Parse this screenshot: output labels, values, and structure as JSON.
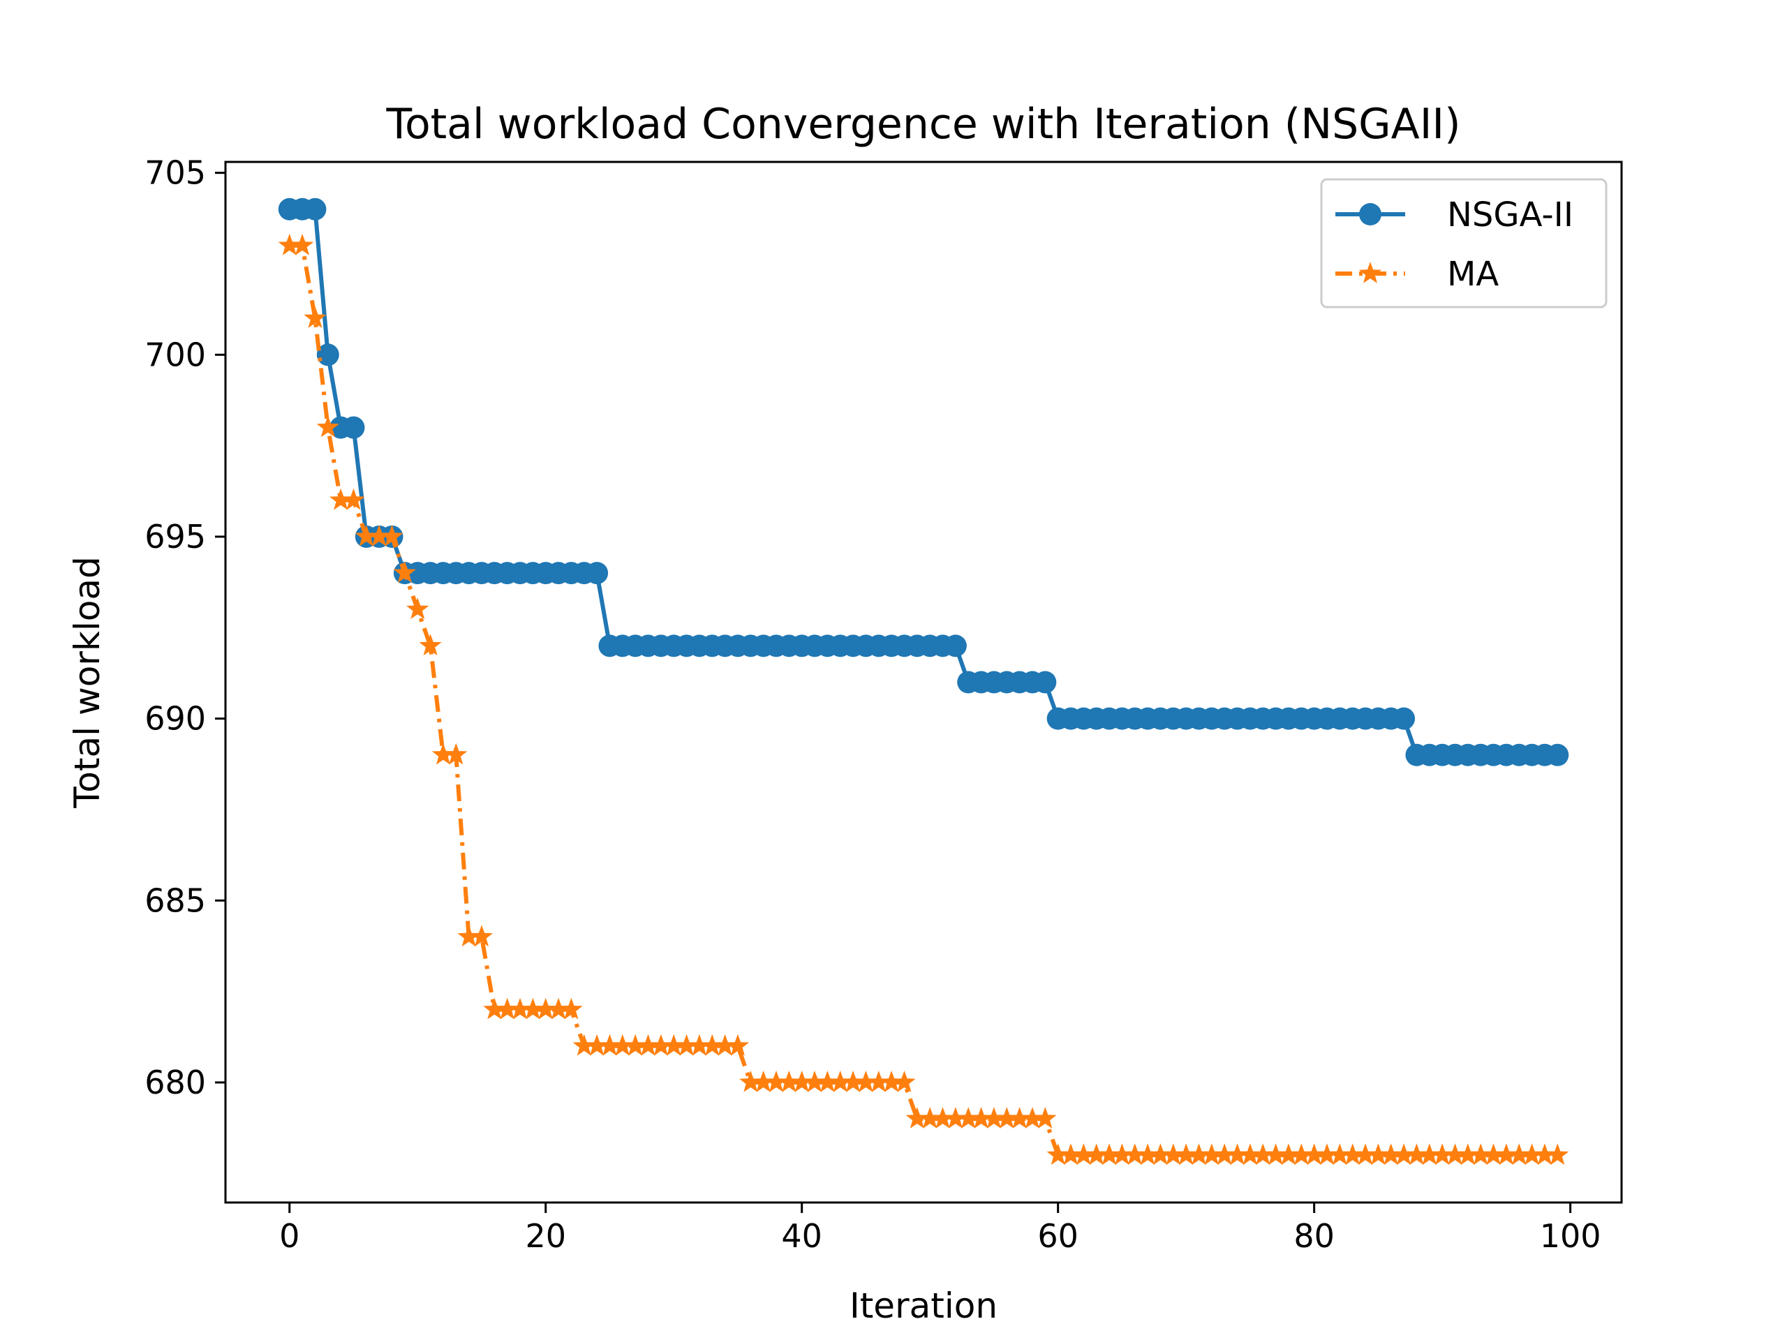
{
  "chart_data": {
    "type": "line",
    "title": "Total workload Convergence with Iteration (NSGAII)",
    "xlabel": "Iteration",
    "ylabel": "Total workload",
    "xlim": [
      -5,
      104
    ],
    "ylim": [
      676.7,
      705.3
    ],
    "xticks": [
      0,
      20,
      40,
      60,
      80,
      100
    ],
    "yticks": [
      680,
      685,
      690,
      695,
      700,
      705
    ],
    "grid": false,
    "legend_position": "upper right",
    "series": [
      {
        "name": "NSGA-II",
        "color": "#1f77b4",
        "marker": "circle",
        "linestyle": "solid",
        "values": [
          704,
          704,
          704,
          700,
          698,
          698,
          695,
          695,
          695,
          694,
          694,
          694,
          694,
          694,
          694,
          694,
          694,
          694,
          694,
          694,
          694,
          694,
          694,
          694,
          694,
          692,
          692,
          692,
          692,
          692,
          692,
          692,
          692,
          692,
          692,
          692,
          692,
          692,
          692,
          692,
          692,
          692,
          692,
          692,
          692,
          692,
          692,
          692,
          692,
          692,
          692,
          692,
          692,
          691,
          691,
          691,
          691,
          691,
          691,
          691,
          690,
          690,
          690,
          690,
          690,
          690,
          690,
          690,
          690,
          690,
          690,
          690,
          690,
          690,
          690,
          690,
          690,
          690,
          690,
          690,
          690,
          690,
          690,
          690,
          690,
          690,
          690,
          690,
          689,
          689,
          689,
          689,
          689,
          689,
          689,
          689,
          689,
          689,
          689,
          689
        ]
      },
      {
        "name": "MA",
        "color": "#ff7f0e",
        "marker": "star",
        "linestyle": "dashdot",
        "values": [
          703,
          703,
          701,
          698,
          696,
          696,
          695,
          695,
          695,
          694,
          693,
          692,
          689,
          689,
          684,
          684,
          682,
          682,
          682,
          682,
          682,
          682,
          682,
          681,
          681,
          681,
          681,
          681,
          681,
          681,
          681,
          681,
          681,
          681,
          681,
          681,
          680,
          680,
          680,
          680,
          680,
          680,
          680,
          680,
          680,
          680,
          680,
          680,
          680,
          679,
          679,
          679,
          679,
          679,
          679,
          679,
          679,
          679,
          679,
          679,
          678,
          678,
          678,
          678,
          678,
          678,
          678,
          678,
          678,
          678,
          678,
          678,
          678,
          678,
          678,
          678,
          678,
          678,
          678,
          678,
          678,
          678,
          678,
          678,
          678,
          678,
          678,
          678,
          678,
          678,
          678,
          678,
          678,
          678,
          678,
          678,
          678,
          678,
          678,
          678
        ]
      }
    ]
  }
}
